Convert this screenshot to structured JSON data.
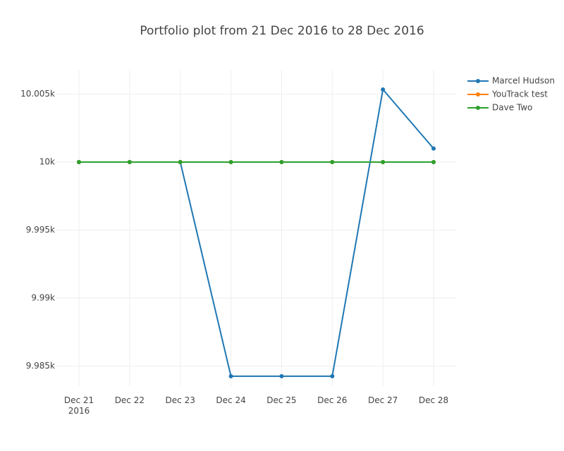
{
  "chart_data": {
    "type": "line",
    "title": "Portfolio plot from 21 Dec 2016 to 28 Dec 2016",
    "x": [
      "2016-12-21",
      "2016-12-22",
      "2016-12-23",
      "2016-12-24",
      "2016-12-25",
      "2016-12-26",
      "2016-12-27",
      "2016-12-28"
    ],
    "series": [
      {
        "name": "Marcel Hudson",
        "color": "#1f77b4",
        "values": [
          10000,
          10000,
          10000,
          9984.25,
          9984.25,
          9984.25,
          10005.34,
          10001.0
        ]
      },
      {
        "name": "YouTrack test",
        "color": "#ff7f0e",
        "values": [
          10000,
          10000,
          10000,
          10000,
          10000,
          10000,
          10000,
          10000
        ]
      },
      {
        "name": "Dave Two",
        "color": "#2ca02c",
        "values": [
          10000,
          10000,
          10000,
          10000,
          10000,
          10000,
          10000,
          10000
        ]
      }
    ],
    "xlim": [
      "2016-12-21",
      "2016-12-28"
    ],
    "xticks": [
      {
        "value": "2016-12-21",
        "label": "Dec 21\n2016"
      },
      {
        "value": "2016-12-22",
        "label": "Dec 22"
      },
      {
        "value": "2016-12-23",
        "label": "Dec 23"
      },
      {
        "value": "2016-12-24",
        "label": "Dec 24"
      },
      {
        "value": "2016-12-25",
        "label": "Dec 25"
      },
      {
        "value": "2016-12-26",
        "label": "Dec 26"
      },
      {
        "value": "2016-12-27",
        "label": "Dec 27"
      },
      {
        "value": "2016-12-28",
        "label": "Dec 28"
      }
    ],
    "ylim": [
      9983.52,
      10006.74
    ],
    "yticks": [
      {
        "value": 9985,
        "label": "9.985k"
      },
      {
        "value": 9990,
        "label": "9.99k"
      },
      {
        "value": 9995,
        "label": "9.995k"
      },
      {
        "value": 10000,
        "label": "10k"
      },
      {
        "value": 10005,
        "label": "10.005k"
      }
    ],
    "grid": true,
    "legend": "top-right"
  }
}
